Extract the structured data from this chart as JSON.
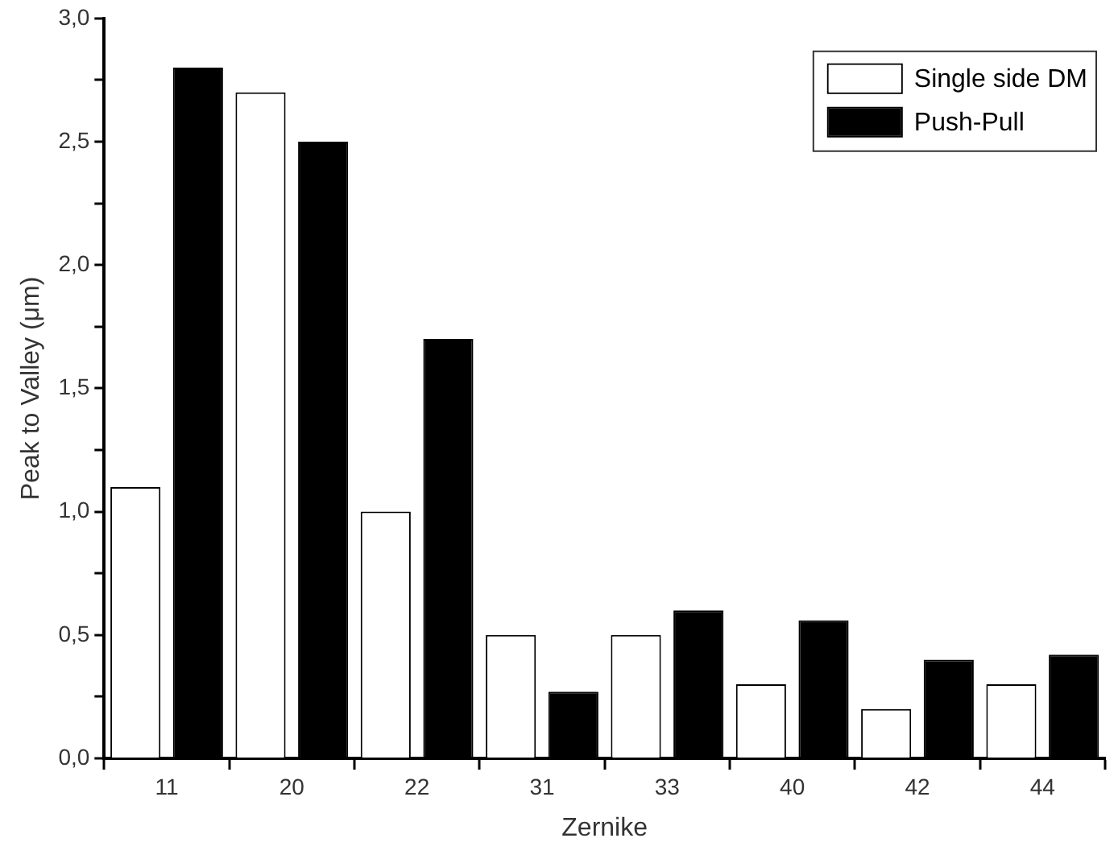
{
  "chart_data": {
    "type": "bar",
    "xlabel": "Zernike",
    "ylabel": "Peak to Valley (μm)",
    "categories": [
      "11",
      "20",
      "22",
      "31",
      "33",
      "40",
      "42",
      "44"
    ],
    "series": [
      {
        "name": "Single side DM",
        "color": "#ffffff",
        "values": [
          1.1,
          2.7,
          1.0,
          0.5,
          0.5,
          0.3,
          0.2,
          0.3
        ]
      },
      {
        "name": "Push-Pull",
        "color": "#000000",
        "values": [
          2.8,
          2.5,
          1.7,
          0.27,
          0.6,
          0.56,
          0.4,
          0.42
        ]
      }
    ],
    "ylim": [
      0,
      3
    ],
    "yticks": [
      {
        "value": 0,
        "label": "0,0"
      },
      {
        "value": 0.25,
        "label": null
      },
      {
        "value": 0.5,
        "label": "0,5"
      },
      {
        "value": 0.75,
        "label": null
      },
      {
        "value": 1,
        "label": "1,0"
      },
      {
        "value": 1.25,
        "label": null
      },
      {
        "value": 1.5,
        "label": "1,5"
      },
      {
        "value": 1.75,
        "label": null
      },
      {
        "value": 2,
        "label": "2,0"
      },
      {
        "value": 2.25,
        "label": null
      },
      {
        "value": 2.5,
        "label": "2,5"
      },
      {
        "value": 2.75,
        "label": null
      },
      {
        "value": 3,
        "label": "3,0"
      }
    ],
    "grid": false,
    "legend": "top right"
  }
}
